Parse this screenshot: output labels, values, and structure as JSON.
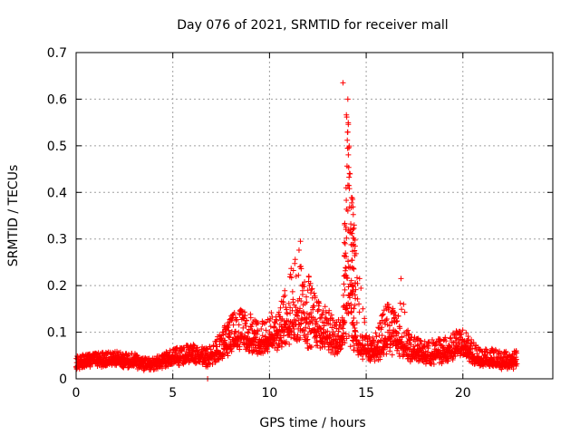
{
  "chart_data": {
    "type": "scatter",
    "title": "Day 076 of 2021, SRMTID for receiver mall",
    "xlabel": "GPS time / hours",
    "ylabel": "SRMTID / TECUs",
    "xlim": [
      0,
      24.65
    ],
    "ylim": [
      0,
      0.7
    ],
    "grid": true,
    "marker": "+",
    "series_color": "#ff0000",
    "x_ticks": [
      {
        "value": 0,
        "label": "0"
      },
      {
        "value": 5,
        "label": "5"
      },
      {
        "value": 10,
        "label": "10"
      },
      {
        "value": 15,
        "label": "15"
      },
      {
        "value": 20,
        "label": "20"
      }
    ],
    "y_ticks": [
      {
        "value": 0,
        "label": "0"
      },
      {
        "value": 0.1,
        "label": "0.1"
      },
      {
        "value": 0.2,
        "label": "0.2"
      },
      {
        "value": 0.3,
        "label": "0.3"
      },
      {
        "value": 0.4,
        "label": "0.4"
      },
      {
        "value": 0.5,
        "label": "0.5"
      },
      {
        "value": 0.6,
        "label": "0.6"
      },
      {
        "value": 0.7,
        "label": "0.7"
      }
    ],
    "envelope": {
      "x": [
        0,
        1,
        2,
        3,
        3.5,
        4,
        5,
        6,
        6.8,
        7.5,
        8,
        8.5,
        9,
        9.5,
        10,
        10.5,
        11,
        11.5,
        11.8,
        12.2,
        12.6,
        13,
        13.5,
        13.8,
        14.0,
        14.3,
        14.6,
        15,
        15.5,
        16,
        16.3,
        16.6,
        16.8,
        17.2,
        18,
        19,
        19.5,
        20,
        20.5,
        21,
        21.5,
        22,
        22.5,
        22.8
      ],
      "median": [
        0.035,
        0.04,
        0.04,
        0.037,
        0.03,
        0.032,
        0.045,
        0.05,
        0.045,
        0.06,
        0.08,
        0.09,
        0.085,
        0.07,
        0.09,
        0.1,
        0.11,
        0.14,
        0.13,
        0.12,
        0.11,
        0.09,
        0.08,
        0.09,
        0.2,
        0.12,
        0.08,
        0.06,
        0.06,
        0.08,
        0.11,
        0.09,
        0.08,
        0.06,
        0.05,
        0.055,
        0.06,
        0.085,
        0.05,
        0.04,
        0.04,
        0.035,
        0.035,
        0.035
      ],
      "upper": [
        0.05,
        0.055,
        0.06,
        0.055,
        0.045,
        0.045,
        0.065,
        0.075,
        0.065,
        0.1,
        0.14,
        0.15,
        0.14,
        0.12,
        0.14,
        0.15,
        0.22,
        0.29,
        0.25,
        0.2,
        0.17,
        0.15,
        0.13,
        0.14,
        0.63,
        0.38,
        0.24,
        0.1,
        0.1,
        0.17,
        0.16,
        0.13,
        0.2,
        0.1,
        0.08,
        0.09,
        0.1,
        0.11,
        0.08,
        0.065,
        0.065,
        0.06,
        0.06,
        0.06
      ],
      "lower": [
        0.02,
        0.025,
        0.025,
        0.022,
        0.015,
        0.018,
        0.028,
        0.03,
        0.025,
        0.035,
        0.045,
        0.055,
        0.05,
        0.045,
        0.055,
        0.055,
        0.06,
        0.07,
        0.065,
        0.06,
        0.06,
        0.055,
        0.05,
        0.06,
        0.06,
        0.05,
        0.04,
        0.035,
        0.035,
        0.04,
        0.05,
        0.045,
        0.04,
        0.035,
        0.03,
        0.03,
        0.035,
        0.045,
        0.03,
        0.025,
        0.025,
        0.02,
        0.02,
        0.02
      ]
    },
    "notable_points": [
      {
        "x": 6.8,
        "y": 0.0
      },
      {
        "x": 13.8,
        "y": 0.635
      },
      {
        "x": 14.05,
        "y": 0.6
      },
      {
        "x": 14.3,
        "y": 0.385
      },
      {
        "x": 16.8,
        "y": 0.215
      },
      {
        "x": 11.6,
        "y": 0.295
      }
    ]
  }
}
